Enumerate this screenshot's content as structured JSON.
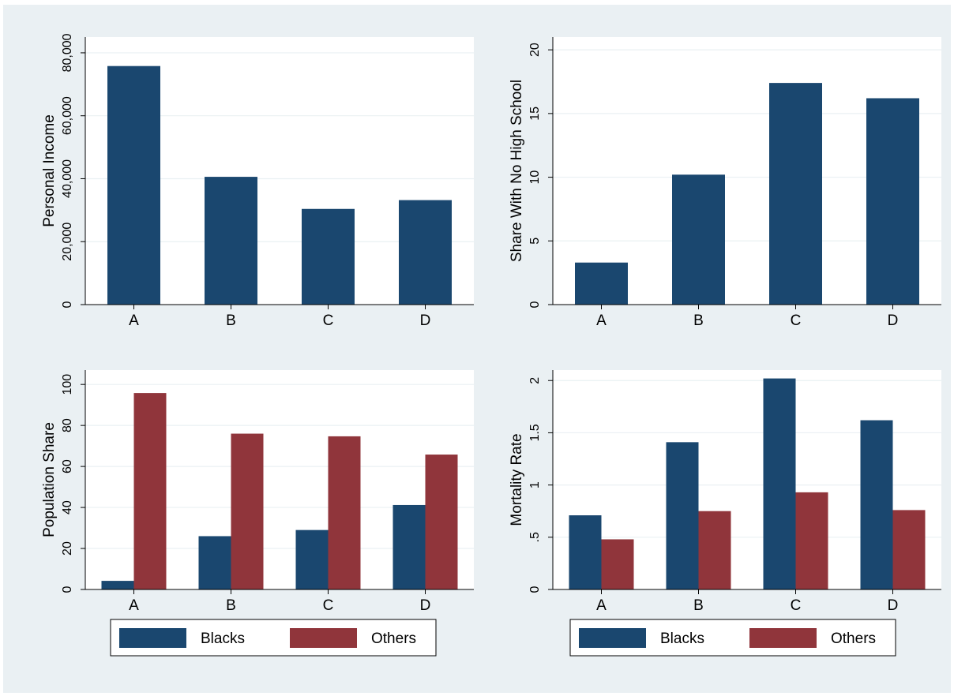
{
  "colors": {
    "background": "#eaf0f3",
    "plot_bg": "#ffffff",
    "blacks": "#1a476f",
    "others": "#90353b",
    "grid": "#eaf0f3"
  },
  "chart_data": [
    {
      "type": "bar",
      "ylabel": "Personal Income",
      "categories": [
        "A",
        "B",
        "C",
        "D"
      ],
      "ylim": [
        0,
        85000
      ],
      "yticks": [
        0,
        20000,
        40000,
        60000,
        80000
      ],
      "ytick_labels": [
        "0",
        "20,000",
        "40,000",
        "60,000",
        "80,000"
      ],
      "series": [
        {
          "values": [
            75800,
            40600,
            30400,
            33200
          ]
        }
      ]
    },
    {
      "type": "bar",
      "ylabel": "Share With No High School",
      "categories": [
        "A",
        "B",
        "C",
        "D"
      ],
      "ylim": [
        0,
        21
      ],
      "yticks": [
        0,
        5,
        10,
        15,
        20
      ],
      "ytick_labels": [
        "0",
        "5",
        "10",
        "15",
        "20"
      ],
      "series": [
        {
          "values": [
            3.3,
            10.2,
            17.4,
            16.2
          ]
        }
      ]
    },
    {
      "type": "bar",
      "ylabel": "Population Share",
      "categories": [
        "A",
        "B",
        "C",
        "D"
      ],
      "ylim": [
        0,
        107
      ],
      "yticks": [
        0,
        20,
        40,
        60,
        80,
        100
      ],
      "ytick_labels": [
        "0",
        "20",
        "40",
        "60",
        "80",
        "100"
      ],
      "series": [
        {
          "name": "Blacks",
          "values": [
            4.2,
            26.0,
            29.0,
            41.2
          ]
        },
        {
          "name": "Others",
          "values": [
            95.8,
            76.0,
            74.7,
            65.8
          ]
        }
      ],
      "legend": {
        "placement": "bottom",
        "entries": [
          "Blacks",
          "Others"
        ]
      }
    },
    {
      "type": "bar",
      "ylabel": "Mortality Rate",
      "categories": [
        "A",
        "B",
        "C",
        "D"
      ],
      "ylim": [
        0,
        2.1
      ],
      "yticks": [
        0,
        0.5,
        1,
        1.5,
        2
      ],
      "ytick_labels": [
        "0",
        ".5",
        "1",
        "1.5",
        "2"
      ],
      "series": [
        {
          "name": "Blacks",
          "values": [
            0.71,
            1.41,
            2.02,
            1.62
          ]
        },
        {
          "name": "Others",
          "values": [
            0.48,
            0.75,
            0.93,
            0.76
          ]
        }
      ],
      "legend": {
        "placement": "bottom",
        "entries": [
          "Blacks",
          "Others"
        ]
      }
    }
  ]
}
